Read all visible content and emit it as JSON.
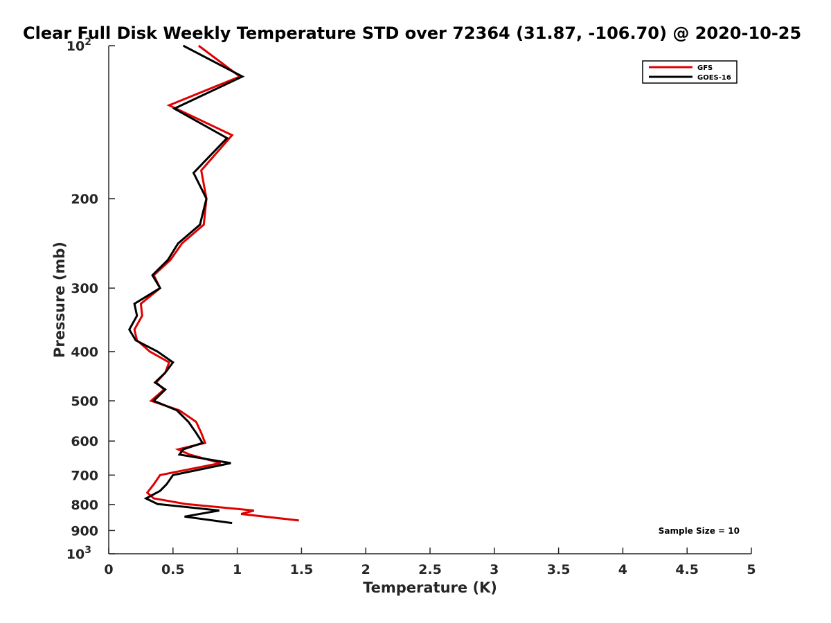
{
  "chart_data": {
    "type": "line",
    "title": "Clear Full Disk Weekly Temperature STD over 72364 (31.87, -106.70) @ 2020-10-25",
    "xlabel": "Temperature (K)",
    "ylabel": "Pressure (mb)",
    "xlim": [
      0,
      5
    ],
    "ylim": [
      100,
      1000
    ],
    "y_scale": "log",
    "y_reversed": true,
    "grid": false,
    "legend_position": "top-right",
    "x_ticks": [
      "0",
      "0.5",
      "1",
      "1.5",
      "2",
      "2.5",
      "3",
      "3.5",
      "4",
      "4.5",
      "5"
    ],
    "y_ticks": [
      {
        "value": 100,
        "label": "10",
        "sup": "2"
      },
      {
        "value": 200,
        "label": "200"
      },
      {
        "value": 300,
        "label": "300"
      },
      {
        "value": 400,
        "label": "400"
      },
      {
        "value": 500,
        "label": "500"
      },
      {
        "value": 600,
        "label": "600"
      },
      {
        "value": 700,
        "label": "700"
      },
      {
        "value": 800,
        "label": "800"
      },
      {
        "value": 900,
        "label": "900"
      },
      {
        "value": 1000,
        "label": "10",
        "sup": "3"
      }
    ],
    "annotation": "Sample Size = 10",
    "series": [
      {
        "name": "GFS",
        "color": "#e00000",
        "points": [
          [
            0.7,
            100
          ],
          [
            1.02,
            115
          ],
          [
            0.47,
            131
          ],
          [
            0.96,
            150
          ],
          [
            0.72,
            176
          ],
          [
            0.76,
            200
          ],
          [
            0.74,
            225
          ],
          [
            0.57,
            245
          ],
          [
            0.48,
            264
          ],
          [
            0.35,
            283
          ],
          [
            0.4,
            300
          ],
          [
            0.25,
            322
          ],
          [
            0.26,
            340
          ],
          [
            0.2,
            362
          ],
          [
            0.22,
            380
          ],
          [
            0.32,
            400
          ],
          [
            0.47,
            420
          ],
          [
            0.44,
            440
          ],
          [
            0.37,
            460
          ],
          [
            0.43,
            475
          ],
          [
            0.33,
            500
          ],
          [
            0.55,
            522
          ],
          [
            0.68,
            550
          ],
          [
            0.72,
            578
          ],
          [
            0.75,
            605
          ],
          [
            0.54,
            623
          ],
          [
            0.63,
            638
          ],
          [
            0.87,
            663
          ],
          [
            0.4,
            700
          ],
          [
            0.35,
            730
          ],
          [
            0.3,
            758
          ],
          [
            0.35,
            778
          ],
          [
            0.6,
            798
          ],
          [
            1.13,
            822
          ],
          [
            1.03,
            835
          ],
          [
            1.48,
            860
          ]
        ]
      },
      {
        "name": "GOES-16",
        "color": "#000000",
        "points": [
          [
            0.58,
            100
          ],
          [
            1.04,
            115
          ],
          [
            0.51,
            133
          ],
          [
            0.92,
            152
          ],
          [
            0.66,
            178
          ],
          [
            0.76,
            200
          ],
          [
            0.71,
            225
          ],
          [
            0.54,
            245
          ],
          [
            0.46,
            264
          ],
          [
            0.34,
            283
          ],
          [
            0.4,
            300
          ],
          [
            0.2,
            322
          ],
          [
            0.22,
            340
          ],
          [
            0.16,
            362
          ],
          [
            0.21,
            380
          ],
          [
            0.38,
            400
          ],
          [
            0.5,
            420
          ],
          [
            0.44,
            440
          ],
          [
            0.36,
            460
          ],
          [
            0.44,
            475
          ],
          [
            0.35,
            500
          ],
          [
            0.53,
            522
          ],
          [
            0.62,
            550
          ],
          [
            0.68,
            578
          ],
          [
            0.73,
            605
          ],
          [
            0.58,
            623
          ],
          [
            0.55,
            638
          ],
          [
            0.95,
            663
          ],
          [
            0.5,
            700
          ],
          [
            0.45,
            730
          ],
          [
            0.4,
            752
          ],
          [
            0.29,
            778
          ],
          [
            0.38,
            798
          ],
          [
            0.86,
            822
          ],
          [
            0.59,
            845
          ],
          [
            0.96,
            870
          ]
        ]
      }
    ]
  }
}
